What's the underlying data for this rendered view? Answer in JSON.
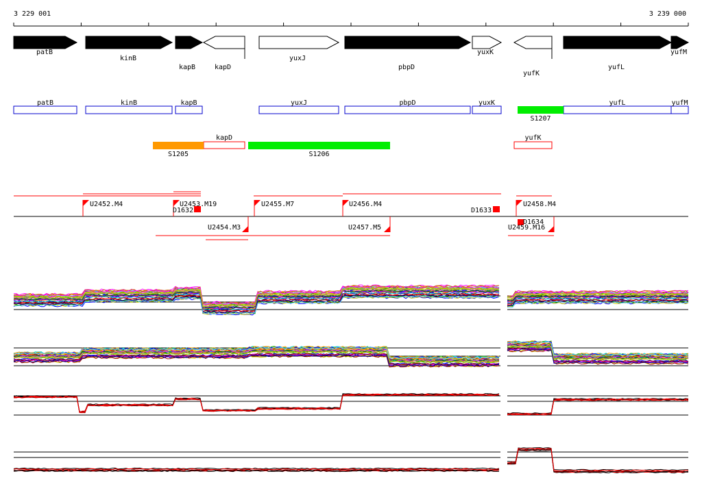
{
  "coordinates": {
    "start": "3 229 001",
    "end": "3 239 000"
  },
  "colors": {
    "gene_fill": "#000000",
    "transcript_border": "#0000cc",
    "green_segment": "#00ee00",
    "orange_segment": "#ff9900",
    "red": "#ff0000"
  },
  "genes": [
    {
      "name": "patB",
      "strand": "+",
      "filled": true
    },
    {
      "name": "kinB",
      "strand": "+",
      "filled": true
    },
    {
      "name": "kapB",
      "strand": "+",
      "filled": true
    },
    {
      "name": "kapD",
      "strand": "-",
      "filled": false
    },
    {
      "name": "yuxJ",
      "strand": "+",
      "filled": false
    },
    {
      "name": "pbpD",
      "strand": "+",
      "filled": true
    },
    {
      "name": "yuxK",
      "strand": "+",
      "filled": false
    },
    {
      "name": "yufK",
      "strand": "-",
      "filled": false
    },
    {
      "name": "yufL",
      "strand": "+",
      "filled": true
    },
    {
      "name": "yufM",
      "strand": "+",
      "filled": true
    }
  ],
  "plus_units": [
    {
      "name": "patB"
    },
    {
      "name": "kinB"
    },
    {
      "name": "kapB"
    },
    {
      "name": "yuxJ"
    },
    {
      "name": "pbpD"
    },
    {
      "name": "yuxK"
    },
    {
      "name": "yufL"
    },
    {
      "name": "yufM"
    }
  ],
  "minus_units": [
    {
      "name": "kapD"
    },
    {
      "name": "yufK"
    }
  ],
  "segments": [
    {
      "name": "S1205",
      "color": "#ff9900"
    },
    {
      "name": "S1206",
      "color": "#00ee00"
    },
    {
      "name": "S1207",
      "color": "#00ee00"
    }
  ],
  "upper_markers": [
    {
      "label": "U2452.M4"
    },
    {
      "label": "U2453.M19"
    },
    {
      "label": "D1632"
    },
    {
      "label": "U2455.M7"
    },
    {
      "label": "U2456.M4"
    },
    {
      "label": "D1633"
    },
    {
      "label": "U2458.M4"
    }
  ],
  "lower_markers": [
    {
      "label": "U2454.M3"
    },
    {
      "label": "U2457.M5"
    },
    {
      "label": "D1634"
    },
    {
      "label": "U2459.M16"
    }
  ],
  "expression_panels": [
    {
      "name": "plus-strand-expression-multi"
    },
    {
      "name": "minus-strand-expression-multi"
    },
    {
      "name": "plus-strand-expression-summary"
    },
    {
      "name": "minus-strand-expression-summary"
    }
  ]
}
